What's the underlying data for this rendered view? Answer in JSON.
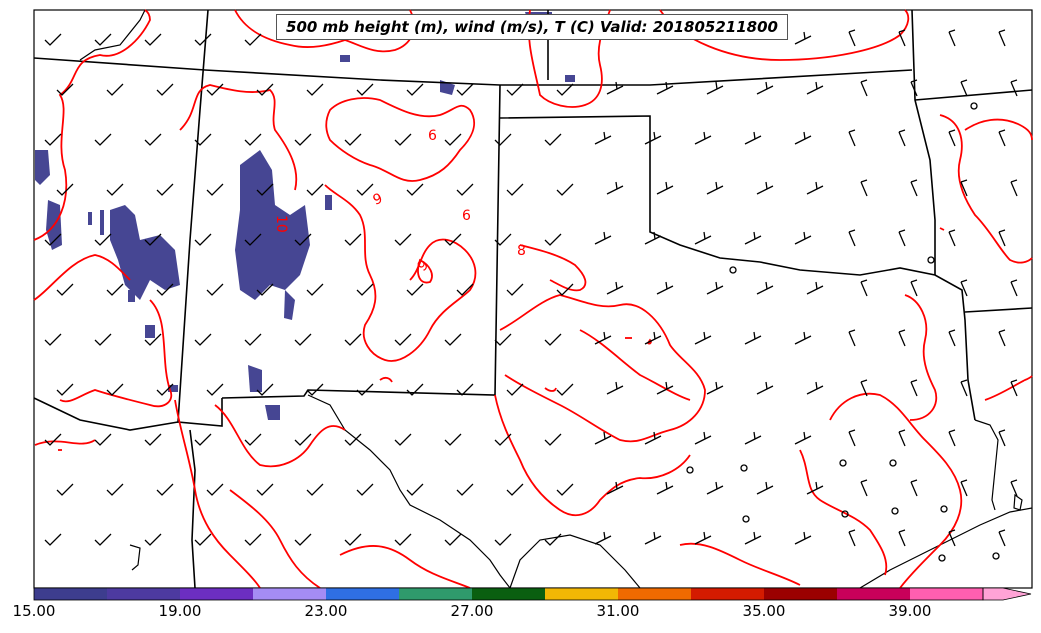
{
  "title": "500 mb height (m), wind (m/s), T (C) Valid: 201805211800",
  "contour_labels": [
    "10",
    "9",
    "6",
    "9",
    "6",
    "8"
  ],
  "colorbar": {
    "colors": [
      "#3d3d8e",
      "#4d3aa0",
      "#6c2ec1",
      "#a58cf4",
      "#2f6fe3",
      "#2f9a6c",
      "#0a5f10",
      "#f2b705",
      "#f06a00",
      "#d41b00",
      "#9b0000",
      "#c8005a",
      "#ff5fb0",
      "#ffa3d6"
    ],
    "tick_labels": [
      "15.00",
      "19.00",
      "23.00",
      "27.00",
      "31.00",
      "35.00",
      "39.00"
    ]
  },
  "colors": {
    "contour": "#ff0000",
    "boundary": "#000000",
    "shade": "#3d3d8e"
  }
}
